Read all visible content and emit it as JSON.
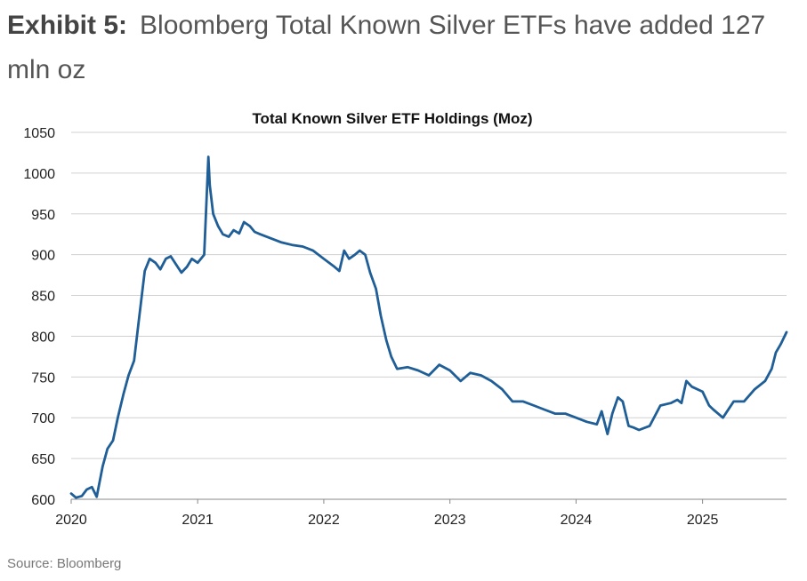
{
  "exhibit": {
    "label": "Exhibit 5:",
    "headline": "Bloomberg Total Known Silver ETFs have added 127 mln oz"
  },
  "source": "Source: Bloomberg",
  "chart_data": {
    "type": "line",
    "title": "Total Known Silver ETF Holdings (Moz)",
    "xlabel": "",
    "ylabel": "",
    "ylim": [
      600,
      1050
    ],
    "xlim": [
      "2020-01-01",
      "2025-09-01"
    ],
    "yticks": [
      600,
      650,
      700,
      750,
      800,
      850,
      900,
      950,
      1000,
      1050
    ],
    "xticks": [
      "2020",
      "2021",
      "2022",
      "2023",
      "2024",
      "2025"
    ],
    "grid": true,
    "series_color": "#1f5e96",
    "series": [
      {
        "x": [
          "2020-01-01",
          "2020-01-15",
          "2020-02-01",
          "2020-02-15",
          "2020-03-01",
          "2020-03-15",
          "2020-04-01",
          "2020-04-15",
          "2020-05-01",
          "2020-05-15",
          "2020-06-01",
          "2020-06-15",
          "2020-07-01",
          "2020-07-15",
          "2020-08-01",
          "2020-08-15",
          "2020-09-01",
          "2020-09-15",
          "2020-10-01",
          "2020-10-15",
          "2020-11-01",
          "2020-11-15",
          "2020-12-01",
          "2020-12-15",
          "2021-01-01",
          "2021-01-20",
          "2021-02-01",
          "2021-02-05",
          "2021-02-15",
          "2021-03-01",
          "2021-03-15",
          "2021-04-01",
          "2021-04-15",
          "2021-05-01",
          "2021-05-15",
          "2021-06-01",
          "2021-06-15",
          "2021-07-01",
          "2021-08-01",
          "2021-09-01",
          "2021-10-01",
          "2021-11-01",
          "2021-12-01",
          "2022-01-01",
          "2022-02-01",
          "2022-02-15",
          "2022-03-01",
          "2022-03-15",
          "2022-04-01",
          "2022-04-15",
          "2022-05-01",
          "2022-05-15",
          "2022-06-01",
          "2022-06-15",
          "2022-07-01",
          "2022-07-15",
          "2022-08-01",
          "2022-09-01",
          "2022-10-01",
          "2022-11-01",
          "2022-12-01",
          "2023-01-01",
          "2023-02-01",
          "2023-03-01",
          "2023-04-01",
          "2023-05-01",
          "2023-06-01",
          "2023-07-01",
          "2023-08-01",
          "2023-09-01",
          "2023-10-01",
          "2023-11-01",
          "2023-12-01",
          "2024-01-01",
          "2024-02-01",
          "2024-03-01",
          "2024-03-15",
          "2024-04-01",
          "2024-04-15",
          "2024-05-01",
          "2024-05-15",
          "2024-06-01",
          "2024-06-15",
          "2024-07-01",
          "2024-08-01",
          "2024-09-01",
          "2024-10-01",
          "2024-10-20",
          "2024-11-01",
          "2024-11-15",
          "2024-12-01",
          "2025-01-01",
          "2025-01-20",
          "2025-02-01",
          "2025-03-01",
          "2025-04-01",
          "2025-05-01",
          "2025-06-01",
          "2025-07-01",
          "2025-07-20",
          "2025-08-01",
          "2025-08-15",
          "2025-09-01"
        ],
        "values": [
          607,
          602,
          604,
          612,
          615,
          603,
          640,
          662,
          672,
          700,
          730,
          752,
          770,
          820,
          880,
          895,
          890,
          882,
          895,
          898,
          887,
          878,
          885,
          895,
          890,
          900,
          1020,
          985,
          950,
          935,
          925,
          922,
          930,
          926,
          940,
          935,
          928,
          925,
          920,
          915,
          912,
          910,
          905,
          895,
          885,
          880,
          905,
          895,
          900,
          905,
          900,
          878,
          858,
          825,
          795,
          775,
          760,
          762,
          758,
          752,
          765,
          758,
          745,
          755,
          752,
          745,
          735,
          720,
          720,
          715,
          710,
          705,
          705,
          700,
          695,
          692,
          708,
          680,
          705,
          725,
          720,
          690,
          688,
          685,
          690,
          715,
          718,
          722,
          718,
          745,
          738,
          732,
          715,
          710,
          700,
          720,
          720,
          735,
          745,
          760,
          780,
          790,
          805
        ]
      }
    ]
  }
}
